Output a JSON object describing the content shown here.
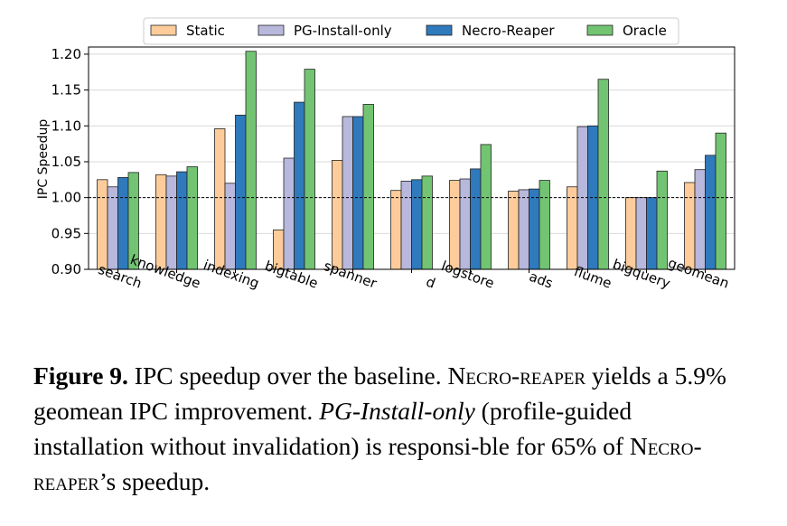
{
  "chart_data": {
    "type": "bar",
    "categories": [
      "search",
      "knowledge",
      "indexing",
      "bigtable",
      "spanner",
      "d",
      "logstore",
      "ads",
      "flume",
      "bigquery",
      "geomean"
    ],
    "series": [
      {
        "name": "Static",
        "color": "#fdcc9a",
        "values": [
          1.025,
          1.032,
          1.096,
          0.955,
          1.052,
          1.01,
          1.024,
          1.009,
          1.015,
          1.0,
          1.021
        ]
      },
      {
        "name": "PG-Install-only",
        "color": "#b8b7dc",
        "values": [
          1.015,
          1.03,
          1.02,
          1.055,
          1.113,
          1.023,
          1.026,
          1.011,
          1.099,
          1.0,
          1.039
        ]
      },
      {
        "name": "Necro-Reaper",
        "color": "#2f7abc",
        "values": [
          1.028,
          1.036,
          1.115,
          1.133,
          1.113,
          1.025,
          1.04,
          1.012,
          1.1,
          1.0,
          1.059
        ]
      },
      {
        "name": "Oracle",
        "color": "#72c472",
        "values": [
          1.035,
          1.043,
          1.204,
          1.179,
          1.13,
          1.03,
          1.074,
          1.024,
          1.165,
          1.037,
          1.09
        ]
      }
    ],
    "ylabel": "IPC Speedup",
    "xlabel": "",
    "ylim": [
      0.9,
      1.21
    ],
    "yticks": [
      "0.90",
      "0.95",
      "1.00",
      "1.05",
      "1.10",
      "1.15",
      "1.20"
    ],
    "baseline": 1.0,
    "grid": "horizontal",
    "legend_position": "top"
  },
  "caption": {
    "label": "Figure 9.",
    "text1": " IPC speedup over the baseline. ",
    "necro1": "Necro-reaper",
    "text2": " yields a 5.9% geomean IPC improvement. ",
    "pg": "PG-Install-only",
    "text3": " (profile-guided installation without invalidation) is responsi-ble for 65% of ",
    "necro2": "Necro-reaper",
    "text4": "’s speedup."
  }
}
